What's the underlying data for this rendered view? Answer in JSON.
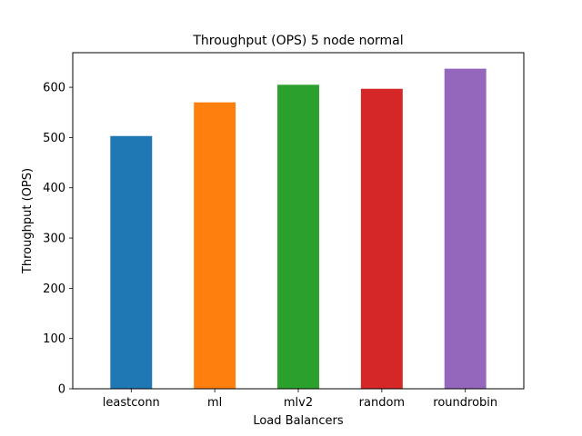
{
  "chart_data": {
    "type": "bar",
    "title": "Throughput (OPS) 5 node normal",
    "xlabel": "Load Balancers",
    "ylabel": "Throughput (OPS)",
    "categories": [
      "leastconn",
      "ml",
      "mlv2",
      "random",
      "roundrobin"
    ],
    "values": [
      503,
      570,
      605,
      597,
      637
    ],
    "colors": [
      "#1f77b4",
      "#ff7f0e",
      "#2ca02c",
      "#d62728",
      "#9467bd"
    ],
    "ylim": [
      0,
      668.85
    ],
    "yticks": [
      0,
      100,
      200,
      300,
      400,
      500,
      600
    ],
    "grid": false,
    "legend": "none"
  }
}
